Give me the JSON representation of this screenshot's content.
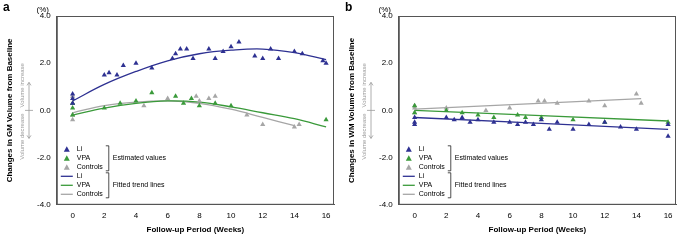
{
  "chart_data": [
    {
      "type": "scatter",
      "panel": "a",
      "y_label": "Changes in GM Volume from Baseline",
      "y_unit": "(%)",
      "x_label": "Follow-up Period (Weeks)",
      "annotations": [
        "Volume increase",
        "Volume decrease"
      ],
      "legend": "lower left",
      "legend_groups": [
        {
          "label": "Estimated values",
          "type": "scatter"
        },
        {
          "label": "Fitted trend lines",
          "type": "line"
        }
      ],
      "xlim": [
        -1,
        16.5
      ],
      "xticks": [
        0,
        2,
        4,
        6,
        8,
        10,
        12,
        14,
        16
      ],
      "ylim": [
        -4,
        4
      ],
      "yticks": [
        {
          "value": -4,
          "label": "-4.0"
        },
        {
          "value": -2,
          "label": "-2.0"
        },
        {
          "value": 0,
          "label": "0.0"
        },
        {
          "value": 2,
          "label": "2.0"
        },
        {
          "value": 4,
          "label": "4.0"
        }
      ],
      "grid": false,
      "series": [
        {
          "name": "Li",
          "type": "scatter",
          "marker": "triangle",
          "color": "#2e3192",
          "x": [
            0,
            0,
            0,
            2,
            2.3,
            2.8,
            3.2,
            4,
            5,
            6.3,
            6.5,
            6.8,
            7.2,
            7.6,
            8.6,
            9,
            9.5,
            10,
            10.5,
            11.5,
            12,
            12.5,
            13,
            14,
            14.5,
            15.8,
            16
          ],
          "values": [
            0.3,
            0.7,
            0.5,
            1.5,
            1.6,
            1.5,
            1.9,
            2.0,
            1.8,
            2.2,
            2.4,
            2.6,
            2.6,
            2.2,
            2.6,
            2.2,
            2.5,
            2.7,
            2.9,
            2.3,
            2.2,
            2.6,
            2.2,
            2.5,
            2.4,
            2.1,
            2.0
          ]
        },
        {
          "name": "VPA",
          "type": "scatter",
          "marker": "triangle",
          "color": "#3a9a3a",
          "x": [
            0,
            0,
            0,
            2,
            3,
            4,
            5,
            6.5,
            7,
            7.5,
            8,
            9,
            10,
            16
          ],
          "values": [
            -0.2,
            0.1,
            0.3,
            0.1,
            0.3,
            0.4,
            0.75,
            0.6,
            0.3,
            0.5,
            0.2,
            0.3,
            0.2,
            -0.4
          ]
        },
        {
          "name": "Controls",
          "type": "scatter",
          "marker": "triangle",
          "color": "#a6a6a6",
          "x": [
            0,
            0,
            0,
            0,
            4.5,
            6,
            7.8,
            8,
            8.6,
            9,
            11,
            12,
            14,
            14.3
          ],
          "values": [
            -0.4,
            -0.2,
            0.3,
            0.6,
            0.2,
            0.5,
            0.6,
            0.4,
            0.5,
            0.6,
            -0.2,
            -0.6,
            -0.7,
            -0.6
          ]
        },
        {
          "name": "Li",
          "type": "line",
          "line_style": "solid",
          "color": "#2e3192",
          "x": [
            0,
            2,
            4,
            6,
            8,
            10,
            12,
            14,
            16
          ],
          "values": [
            0.4,
            1.1,
            1.65,
            2.1,
            2.4,
            2.55,
            2.6,
            2.45,
            2.15
          ]
        },
        {
          "name": "VPA",
          "type": "line",
          "line_style": "solid",
          "color": "#3a9a3a",
          "x": [
            0,
            2,
            4,
            6,
            8,
            10,
            12,
            14,
            16
          ],
          "values": [
            -0.2,
            0.1,
            0.3,
            0.4,
            0.35,
            0.15,
            -0.1,
            -0.35,
            -0.7
          ]
        },
        {
          "name": "Controls",
          "type": "line",
          "line_style": "solid",
          "color": "#a6a6a6",
          "x": [
            0,
            2,
            4,
            6,
            8,
            10,
            12,
            14
          ],
          "values": [
            -0.1,
            0.2,
            0.35,
            0.4,
            0.3,
            0.05,
            -0.3,
            -0.65
          ]
        }
      ]
    },
    {
      "type": "scatter",
      "panel": "b",
      "y_label": "Changes in WM Volume from Baseline",
      "y_unit": "(%)",
      "x_label": "Follow-up Period (Weeks)",
      "annotations": [
        "Volume increase",
        "Volume decrease"
      ],
      "legend": "lower left",
      "legend_groups": [
        {
          "label": "Estimated values",
          "type": "scatter"
        },
        {
          "label": "Fitted trend lines",
          "type": "line"
        }
      ],
      "xlim": [
        -1,
        16.5
      ],
      "xticks": [
        0,
        2,
        4,
        6,
        8,
        10,
        12,
        14,
        16
      ],
      "ylim": [
        -4,
        4
      ],
      "yticks": [
        {
          "value": -4,
          "label": "-4.0"
        },
        {
          "value": -2,
          "label": "-2.0"
        },
        {
          "value": 0,
          "label": "0.0"
        },
        {
          "value": 2,
          "label": "2.0"
        },
        {
          "value": 4,
          "label": "4.0"
        }
      ],
      "grid": false,
      "series": [
        {
          "name": "Li",
          "type": "scatter",
          "marker": "triangle",
          "color": "#2e3192",
          "x": [
            0,
            0,
            0,
            2,
            2.5,
            3,
            3.5,
            4,
            5,
            6,
            6.5,
            7,
            7.5,
            8,
            8.5,
            9,
            10,
            11,
            12,
            13,
            14,
            16,
            16
          ],
          "values": [
            -0.3,
            -0.5,
            -0.6,
            -0.3,
            -0.4,
            -0.3,
            -0.5,
            -0.4,
            -0.5,
            -0.5,
            -0.6,
            -0.5,
            -0.6,
            -0.4,
            -0.8,
            -0.5,
            -0.8,
            -0.6,
            -0.5,
            -0.7,
            -0.8,
            -1.1,
            -0.6
          ]
        },
        {
          "name": "VPA",
          "type": "scatter",
          "marker": "triangle",
          "color": "#3a9a3a",
          "x": [
            0,
            0,
            2,
            3,
            4,
            5,
            6.5,
            7,
            8,
            10,
            12,
            16
          ],
          "values": [
            0.2,
            -0.1,
            0,
            -0.1,
            -0.2,
            -0.3,
            -0.2,
            -0.3,
            -0.3,
            -0.4,
            -0.5,
            -0.5
          ]
        },
        {
          "name": "Controls",
          "type": "scatter",
          "marker": "triangle",
          "color": "#a6a6a6",
          "x": [
            0,
            0,
            0,
            2,
            4.5,
            6,
            7.8,
            8.2,
            9,
            11,
            12,
            14,
            14.3
          ],
          "values": [
            0.1,
            0.2,
            -0.1,
            0.1,
            0,
            0.1,
            0.4,
            0.4,
            0.3,
            0.4,
            0.2,
            0.7,
            0.3
          ]
        },
        {
          "name": "Li",
          "type": "line",
          "line_style": "solid",
          "color": "#2e3192",
          "x": [
            0,
            16
          ],
          "values": [
            -0.3,
            -0.8
          ]
        },
        {
          "name": "VPA",
          "type": "line",
          "line_style": "solid",
          "color": "#3a9a3a",
          "x": [
            0,
            16
          ],
          "values": [
            0,
            -0.45
          ]
        },
        {
          "name": "Controls",
          "type": "line",
          "line_style": "solid",
          "color": "#a6a6a6",
          "x": [
            0,
            14.3
          ],
          "values": [
            0.05,
            0.5
          ]
        }
      ]
    }
  ]
}
